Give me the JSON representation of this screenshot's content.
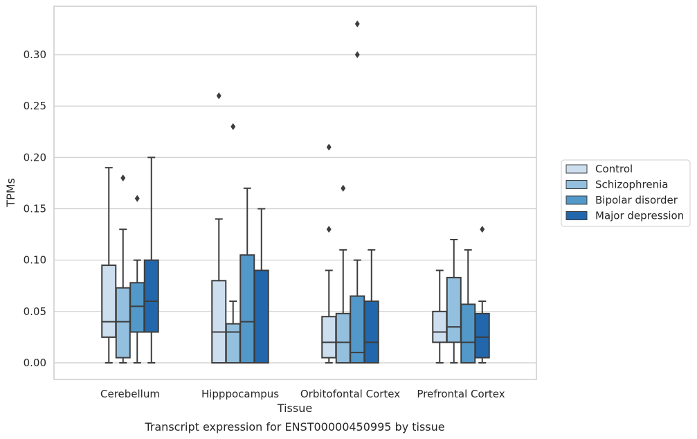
{
  "chart_data": {
    "type": "box",
    "caption": "Transcript expression for ENST00000450995 by tissue",
    "xlabel": "Tissue",
    "ylabel": "TPMs",
    "ylim": [
      -0.016,
      0.348
    ],
    "yticks": [
      0.0,
      0.05,
      0.1,
      0.15,
      0.2,
      0.25,
      0.3
    ],
    "ytick_labels": [
      "0.00",
      "0.05",
      "0.10",
      "0.15",
      "0.20",
      "0.25",
      "0.30"
    ],
    "grid": "horizontal",
    "legend_position": "outside-right",
    "categories": [
      "Cerebellum",
      "Hipppocampus",
      "Orbitofontal Cortex",
      "Prefrontal Cortex"
    ],
    "series": [
      {
        "name": "Control",
        "color": "#cddeef",
        "boxes": [
          {
            "min": 0.0,
            "q1": 0.025,
            "median": 0.04,
            "q3": 0.095,
            "max": 0.19,
            "outliers": []
          },
          {
            "min": 0.0,
            "q1": 0.0,
            "median": 0.03,
            "q3": 0.08,
            "max": 0.14,
            "outliers": [
              0.26
            ]
          },
          {
            "min": 0.0,
            "q1": 0.005,
            "median": 0.02,
            "q3": 0.045,
            "max": 0.09,
            "outliers": [
              0.13,
              0.21
            ]
          },
          {
            "min": 0.0,
            "q1": 0.02,
            "median": 0.03,
            "q3": 0.05,
            "max": 0.09,
            "outliers": []
          }
        ]
      },
      {
        "name": "Schizophrenia",
        "color": "#93c0de",
        "boxes": [
          {
            "min": 0.0,
            "q1": 0.005,
            "median": 0.04,
            "q3": 0.073,
            "max": 0.13,
            "outliers": [
              0.18
            ]
          },
          {
            "min": 0.0,
            "q1": 0.0,
            "median": 0.03,
            "q3": 0.038,
            "max": 0.06,
            "outliers": [
              0.23
            ]
          },
          {
            "min": 0.0,
            "q1": 0.0,
            "median": 0.02,
            "q3": 0.048,
            "max": 0.11,
            "outliers": [
              0.17
            ]
          },
          {
            "min": 0.0,
            "q1": 0.02,
            "median": 0.035,
            "q3": 0.083,
            "max": 0.12,
            "outliers": []
          }
        ]
      },
      {
        "name": "Bipolar disorder",
        "color": "#5299c9",
        "boxes": [
          {
            "min": 0.0,
            "q1": 0.03,
            "median": 0.055,
            "q3": 0.078,
            "max": 0.1,
            "outliers": [
              0.16
            ]
          },
          {
            "min": 0.0,
            "q1": 0.0,
            "median": 0.04,
            "q3": 0.105,
            "max": 0.17,
            "outliers": []
          },
          {
            "min": 0.0,
            "q1": 0.0,
            "median": 0.01,
            "q3": 0.065,
            "max": 0.1,
            "outliers": [
              0.3,
              0.33
            ]
          },
          {
            "min": 0.0,
            "q1": 0.0,
            "median": 0.02,
            "q3": 0.057,
            "max": 0.11,
            "outliers": []
          }
        ]
      },
      {
        "name": "Major depression",
        "color": "#2267ab",
        "boxes": [
          {
            "min": 0.0,
            "q1": 0.03,
            "median": 0.06,
            "q3": 0.1,
            "max": 0.2,
            "outliers": []
          },
          {
            "min": 0.0,
            "q1": 0.0,
            "median": 0.0,
            "q3": 0.09,
            "max": 0.15,
            "outliers": []
          },
          {
            "min": 0.0,
            "q1": 0.0,
            "median": 0.02,
            "q3": 0.06,
            "max": 0.11,
            "outliers": []
          },
          {
            "min": 0.0,
            "q1": 0.005,
            "median": 0.025,
            "q3": 0.048,
            "max": 0.06,
            "outliers": [
              0.13
            ]
          }
        ]
      }
    ]
  }
}
